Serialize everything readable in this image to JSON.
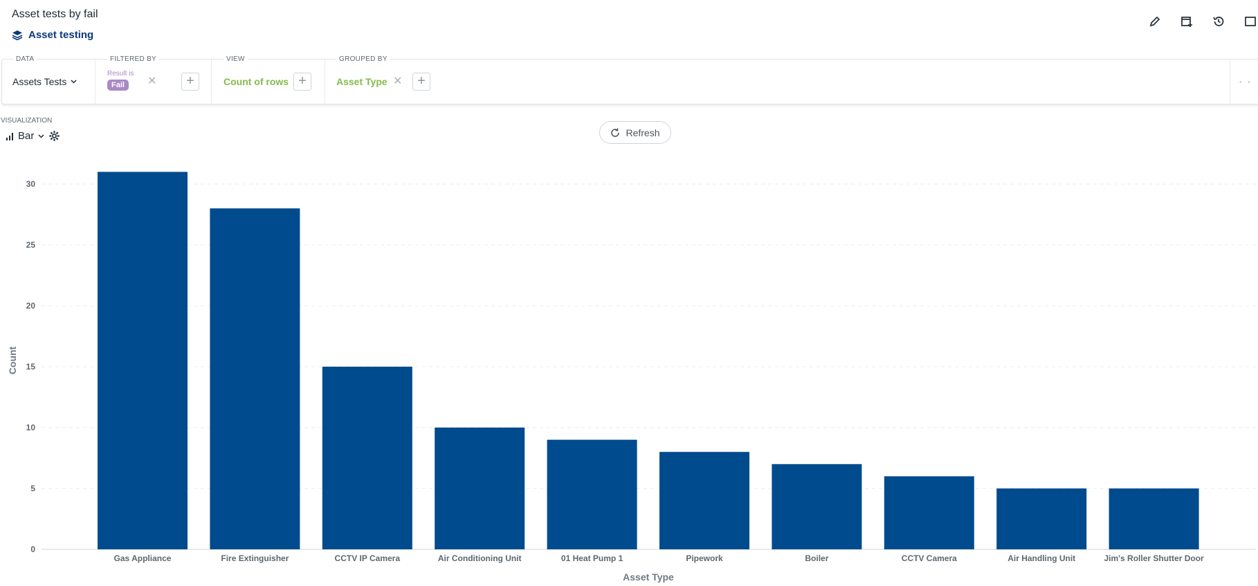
{
  "header": {
    "title": "Asset tests by fail",
    "collection": "Asset testing"
  },
  "query": {
    "data_label": "DATA",
    "data_value": "Assets Tests",
    "filter_label": "FILTERED BY",
    "filter_field": "Result is",
    "filter_value": "Fail",
    "view_label": "VIEW",
    "view_value": "Count of rows",
    "group_label": "GROUPED BY",
    "group_value": "Asset Type"
  },
  "visualization": {
    "label": "VISUALIZATION",
    "type": "Bar",
    "refresh_label": "Refresh"
  },
  "colors": {
    "bar": "#004b8d",
    "filter_pill": "#a989c5",
    "metric_green": "#84bb4c",
    "link_blue": "#0b3a78"
  },
  "icons": [
    "layers-icon",
    "pencil-icon",
    "add-to-dashboard-icon",
    "history-icon",
    "bar-chart-icon",
    "chevron-down-icon",
    "gear-icon",
    "refresh-icon"
  ],
  "chart_data": {
    "type": "bar",
    "categories": [
      "Gas Appliance",
      "Fire Extinguisher",
      "CCTV IP Camera",
      "Air Conditioning Unit",
      "01 Heat Pump 1",
      "Pipework",
      "Boiler",
      "CCTV Camera",
      "Air Handling Unit",
      "Jim's Roller Shutter Door"
    ],
    "values": [
      31,
      28,
      15,
      10,
      9,
      8,
      7,
      6,
      5,
      5
    ],
    "xlabel": "Asset Type",
    "ylabel": "Count",
    "ylim": [
      0,
      30
    ],
    "yticks": [
      0,
      5,
      10,
      15,
      20,
      25,
      30
    ],
    "grid": true
  }
}
